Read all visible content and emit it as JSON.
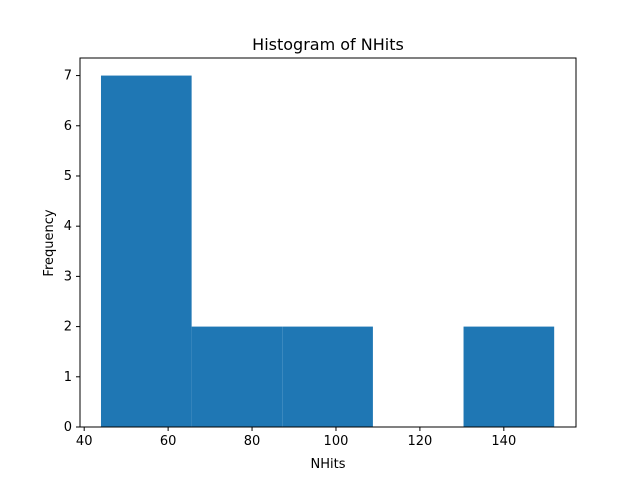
{
  "chart_data": {
    "type": "histogram",
    "title": "Histogram of NHits",
    "xlabel": "NHits",
    "ylabel": "Frequency",
    "xlim": [
      39,
      157.2
    ],
    "ylim": [
      0,
      7.35
    ],
    "bins": [
      {
        "x0": 44,
        "x1": 65.6,
        "count": 7
      },
      {
        "x0": 65.6,
        "x1": 87.2,
        "count": 2
      },
      {
        "x0": 87.2,
        "x1": 108.8,
        "count": 2
      },
      {
        "x0": 108.8,
        "x1": 130.4,
        "count": 0
      },
      {
        "x0": 130.4,
        "x1": 152,
        "count": 2
      }
    ],
    "xticks": [
      40,
      60,
      80,
      100,
      120,
      140
    ],
    "yticks": [
      0,
      1,
      2,
      3,
      4,
      5,
      6,
      7
    ],
    "bar_color": "#1f77b4",
    "grid": false
  }
}
